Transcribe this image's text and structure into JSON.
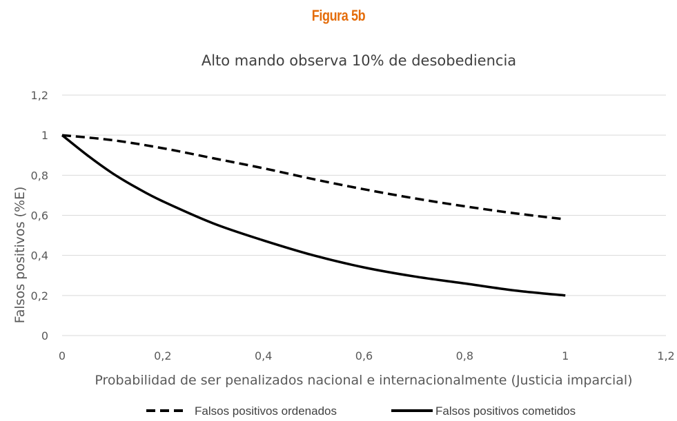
{
  "figure_label": "Figura 5b",
  "colors": {
    "figure_label": "#e46c0a",
    "series": "#000000",
    "grid": "#d9d9d9",
    "text": "#595959"
  },
  "chart_data": {
    "type": "line",
    "title": "Alto mando observa 10% de desobediencia",
    "xlabel": "Probabilidad de ser penalizados nacional e internacionalmente (Justicia imparcial)",
    "ylabel": "Falsos positivos (%E)",
    "xlim": [
      0,
      1.2
    ],
    "ylim": [
      0,
      1.2
    ],
    "x_ticks": [
      "0",
      "0,2",
      "0,4",
      "0,6",
      "0,8",
      "1",
      "1,2"
    ],
    "y_ticks": [
      "0",
      "0,2",
      "0,4",
      "0,6",
      "0,8",
      "1",
      "1,2"
    ],
    "grid": "horizontal",
    "legend_position": "bottom",
    "series": [
      {
        "name": "Falsos positivos ordenados",
        "style": "dashed",
        "x": [
          0,
          0.1,
          0.2,
          0.3,
          0.4,
          0.5,
          0.6,
          0.7,
          0.8,
          0.9,
          1.0
        ],
        "values": [
          1.0,
          0.975,
          0.935,
          0.885,
          0.835,
          0.78,
          0.73,
          0.685,
          0.645,
          0.61,
          0.58
        ]
      },
      {
        "name": "Falsos positivos cometidos",
        "style": "solid",
        "x": [
          0,
          0.05,
          0.1,
          0.15,
          0.2,
          0.3,
          0.4,
          0.5,
          0.6,
          0.7,
          0.8,
          0.9,
          1.0
        ],
        "values": [
          1.0,
          0.9,
          0.81,
          0.735,
          0.67,
          0.56,
          0.475,
          0.4,
          0.34,
          0.295,
          0.26,
          0.225,
          0.2
        ]
      }
    ]
  }
}
